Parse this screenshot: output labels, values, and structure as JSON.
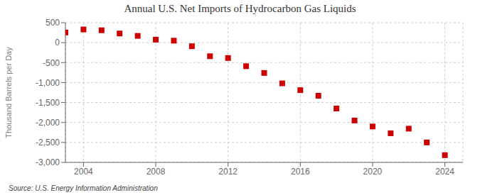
{
  "chart_data": {
    "type": "scatter",
    "title": "Annual U.S. Net Imports of Hydrocarbon Gas Liquids",
    "ylabel": "Thousand Barrels per Day",
    "annotations": [
      "Source: U.S. Energy Information Administration"
    ],
    "x": [
      2003,
      2004,
      2005,
      2006,
      2007,
      2008,
      2009,
      2010,
      2011,
      2012,
      2013,
      2014,
      2015,
      2016,
      2017,
      2018,
      2019,
      2020,
      2021,
      2022,
      2023,
      2024
    ],
    "values": [
      255,
      330,
      310,
      230,
      170,
      75,
      50,
      -90,
      -340,
      -385,
      -590,
      -760,
      -1020,
      -1190,
      -1330,
      -1650,
      -1950,
      -2100,
      -2270,
      -2155,
      -2500,
      -2820
    ],
    "xlim": [
      2003.0,
      2025.0
    ],
    "ylim": [
      -3000,
      500
    ],
    "xticks": [
      2004,
      2008,
      2012,
      2016,
      2020,
      2024
    ],
    "yticks": [
      500,
      0,
      -500,
      {
        "value": -1000,
        "label": "-1,000"
      },
      {
        "value": -1500,
        "label": "-1,500"
      },
      {
        "value": -2000,
        "label": "-2,000"
      },
      {
        "value": -2500,
        "label": "-2,500"
      },
      {
        "value": -3000,
        "label": "-3,000"
      }
    ],
    "color": "#cc0000",
    "marker": "square",
    "grid": true
  }
}
